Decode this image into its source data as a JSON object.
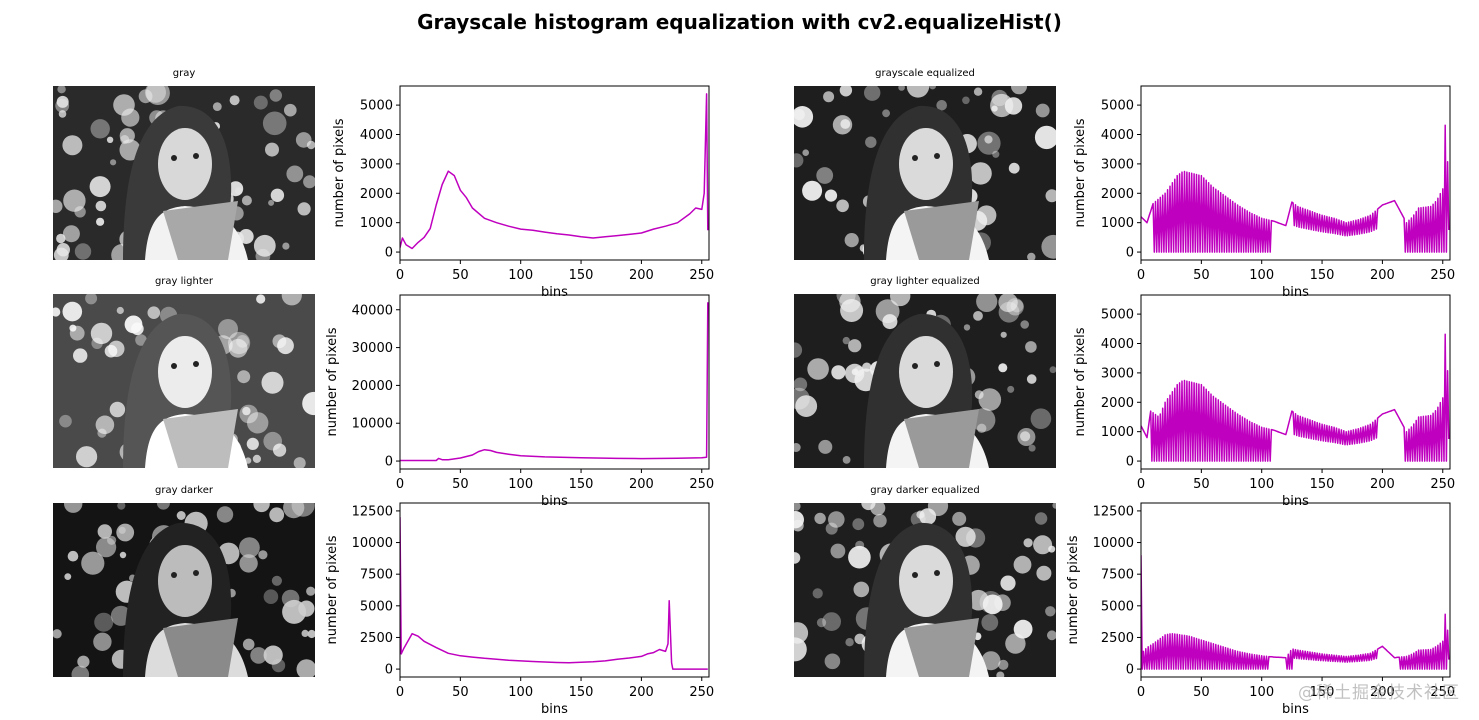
{
  "figure": {
    "title": "Grayscale histogram equalization with cv2.equalizeHist()",
    "watermark": "@稀土掘金技术社区",
    "line_color": "#bf00bf"
  },
  "images": [
    {
      "title": "gray",
      "tone": "normal"
    },
    {
      "title": "grayscale equalized",
      "tone": "equalized"
    },
    {
      "title": "gray lighter",
      "tone": "lighter"
    },
    {
      "title": "gray lighter equalized",
      "tone": "equalized"
    },
    {
      "title": "gray darker",
      "tone": "darker"
    },
    {
      "title": "gray darker equalized",
      "tone": "equalized"
    }
  ],
  "chart_data": [
    {
      "id": "hist-gray",
      "type": "line",
      "title": "",
      "xlabel": "bins",
      "ylabel": "number of pixels",
      "xlim": [
        0,
        256
      ],
      "ylim": [
        -270,
        5650
      ],
      "xticks": [
        0,
        50,
        100,
        150,
        200,
        250
      ],
      "yticks": [
        0,
        1000,
        2000,
        3000,
        4000,
        5000
      ],
      "grid": false,
      "series": [
        {
          "name": "gray",
          "color": "#bf00bf",
          "x": [
            0,
            2,
            5,
            10,
            15,
            20,
            25,
            30,
            35,
            40,
            45,
            50,
            55,
            60,
            70,
            80,
            90,
            100,
            110,
            120,
            130,
            140,
            150,
            160,
            170,
            180,
            190,
            200,
            210,
            220,
            230,
            240,
            245,
            250,
            252,
            254,
            255
          ],
          "y": [
            150,
            480,
            250,
            120,
            330,
            500,
            800,
            1600,
            2300,
            2750,
            2600,
            2100,
            1850,
            1500,
            1150,
            1000,
            880,
            780,
            740,
            680,
            620,
            580,
            520,
            480,
            520,
            560,
            600,
            650,
            780,
            880,
            1000,
            1300,
            1500,
            1450,
            2000,
            5380,
            740
          ]
        }
      ]
    },
    {
      "id": "hist-gray-equalized",
      "type": "line",
      "title": "",
      "xlabel": "bins",
      "ylabel": "number of pixels",
      "xlim": [
        0,
        256
      ],
      "ylim": [
        -270,
        5650
      ],
      "xticks": [
        0,
        50,
        100,
        150,
        200,
        250
      ],
      "yticks": [
        0,
        1000,
        2000,
        3000,
        4000,
        5000
      ],
      "grid": false,
      "series": [
        {
          "name": "grayscale equalized",
          "color": "#bf00bf",
          "style": "oscillating",
          "envelope_x": [
            0,
            5,
            10,
            20,
            30,
            35,
            40,
            50,
            60,
            70,
            80,
            90,
            100,
            110,
            120,
            125,
            130,
            140,
            150,
            160,
            170,
            180,
            190,
            200,
            210,
            220,
            225,
            230,
            240,
            245,
            250,
            253,
            255
          ],
          "envelope_top": [
            1200,
            1000,
            1650,
            2000,
            2600,
            2750,
            2700,
            2600,
            2200,
            1900,
            1600,
            1350,
            1150,
            1050,
            900,
            1700,
            1550,
            1400,
            1250,
            1150,
            1000,
            1100,
            1250,
            1600,
            1750,
            1000,
            1200,
            1500,
            1550,
            1750,
            2150,
            5400,
            750
          ],
          "gaps_to_zero_range": [
            [
              10,
              107
            ],
            [
              127,
              195
            ],
            [
              218,
              254
            ]
          ]
        }
      ]
    },
    {
      "id": "hist-gray-lighter",
      "type": "line",
      "title": "",
      "xlabel": "bins",
      "ylabel": "number of pixels",
      "xlim": [
        0,
        256
      ],
      "ylim": [
        -2100,
        43900
      ],
      "xticks": [
        0,
        50,
        100,
        150,
        200,
        250
      ],
      "yticks": [
        0,
        10000,
        20000,
        30000,
        40000
      ],
      "grid": false,
      "series": [
        {
          "name": "gray lighter",
          "color": "#bf00bf",
          "x": [
            0,
            10,
            20,
            30,
            32,
            35,
            40,
            50,
            60,
            65,
            70,
            75,
            80,
            90,
            100,
            120,
            150,
            180,
            200,
            230,
            250,
            254,
            255
          ],
          "y": [
            150,
            150,
            150,
            150,
            700,
            350,
            350,
            800,
            1600,
            2500,
            3000,
            2800,
            2300,
            1800,
            1400,
            1100,
            900,
            700,
            650,
            750,
            900,
            1000,
            42000
          ]
        }
      ]
    },
    {
      "id": "hist-gray-lighter-equalized",
      "type": "line",
      "title": "",
      "xlabel": "bins",
      "ylabel": "number of pixels",
      "xlim": [
        0,
        256
      ],
      "ylim": [
        -270,
        5650
      ],
      "xticks": [
        0,
        50,
        100,
        150,
        200,
        250
      ],
      "yticks": [
        0,
        1000,
        2000,
        3000,
        4000,
        5000
      ],
      "grid": false,
      "series": [
        {
          "name": "gray lighter equalized",
          "color": "#bf00bf",
          "style": "oscillating",
          "envelope_x": [
            0,
            5,
            8,
            15,
            20,
            30,
            35,
            40,
            50,
            60,
            70,
            80,
            90,
            100,
            110,
            120,
            125,
            130,
            140,
            150,
            160,
            170,
            180,
            190,
            200,
            210,
            220,
            225,
            230,
            240,
            245,
            250,
            253,
            255
          ],
          "envelope_top": [
            1200,
            800,
            1700,
            1500,
            2000,
            2600,
            2750,
            2700,
            2600,
            2200,
            1900,
            1600,
            1350,
            1150,
            1050,
            900,
            1700,
            1550,
            1400,
            1250,
            1150,
            1000,
            1100,
            1250,
            1600,
            1750,
            1000,
            1200,
            1500,
            1550,
            1750,
            2150,
            5400,
            750
          ],
          "gaps_to_zero_range": [
            [
              8,
              107
            ],
            [
              127,
              195
            ],
            [
              218,
              254
            ]
          ]
        }
      ]
    },
    {
      "id": "hist-gray-darker",
      "type": "line",
      "title": "",
      "xlabel": "bins",
      "ylabel": "number of pixels",
      "xlim": [
        0,
        256
      ],
      "ylim": [
        -625,
        13125
      ],
      "xticks": [
        0,
        50,
        100,
        150,
        200,
        250
      ],
      "yticks": [
        0,
        2500,
        5000,
        7500,
        10000,
        12500
      ],
      "grid": false,
      "series": [
        {
          "name": "gray darker",
          "color": "#bf00bf",
          "x": [
            0,
            1,
            3,
            10,
            15,
            20,
            30,
            40,
            50,
            60,
            70,
            80,
            90,
            100,
            110,
            120,
            130,
            140,
            150,
            160,
            170,
            180,
            190,
            200,
            205,
            210,
            215,
            220,
            222,
            223,
            225,
            226,
            240,
            255
          ],
          "y": [
            12000,
            1200,
            1600,
            2800,
            2600,
            2200,
            1700,
            1250,
            1050,
            950,
            850,
            780,
            700,
            650,
            600,
            560,
            520,
            500,
            540,
            580,
            650,
            780,
            880,
            1000,
            1200,
            1300,
            1550,
            1400,
            2000,
            5400,
            500,
            0,
            0,
            0
          ]
        }
      ]
    },
    {
      "id": "hist-gray-darker-equalized",
      "type": "line",
      "title": "",
      "xlabel": "bins",
      "ylabel": "number of pixels",
      "xlim": [
        0,
        256
      ],
      "ylim": [
        -625,
        13125
      ],
      "xticks": [
        0,
        50,
        100,
        150,
        200,
        250
      ],
      "yticks": [
        0,
        2500,
        5000,
        7500,
        10000,
        12500
      ],
      "grid": false,
      "series": [
        {
          "name": "gray darker equalized",
          "color": "#bf00bf",
          "style": "oscillating",
          "envelope_x": [
            0,
            1,
            5,
            10,
            20,
            25,
            30,
            40,
            50,
            60,
            70,
            80,
            90,
            100,
            105,
            110,
            120,
            125,
            130,
            140,
            150,
            160,
            170,
            180,
            190,
            200,
            210,
            220,
            225,
            230,
            240,
            245,
            250,
            253,
            255
          ],
          "envelope_top": [
            9000,
            1300,
            1700,
            2000,
            2700,
            2800,
            2750,
            2600,
            2300,
            2000,
            1700,
            1400,
            1200,
            1050,
            1000,
            950,
            900,
            1600,
            1500,
            1350,
            1200,
            1100,
            1000,
            1100,
            1250,
            1800,
            900,
            1000,
            1200,
            1500,
            1550,
            1800,
            2200,
            5400,
            750
          ],
          "gaps_to_zero_range": [
            [
              1,
              106
            ],
            [
              120,
              195
            ],
            [
              215,
              254
            ]
          ]
        }
      ]
    }
  ]
}
